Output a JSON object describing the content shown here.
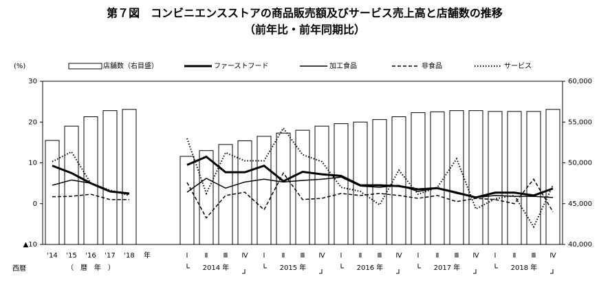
{
  "chart_data": {
    "type": "bar_line",
    "title": "第７図　コンビニエンスストアの商品販売額及びサービス売上高と店舗数の推移",
    "subtitle": "（前年比・前年同期比）",
    "ylabel": "(%)",
    "xlabel": "西暦",
    "annual_group_label": "（　暦　年　）",
    "annual_suffix": "年",
    "year_groups": [
      "2014 年",
      "2015 年",
      "2016 年",
      "2017 年",
      "2018 年"
    ],
    "categories": [
      "'14",
      "'15",
      "'16",
      "'17",
      "'18",
      null,
      null,
      "Ⅰ",
      "Ⅱ",
      "Ⅲ",
      "Ⅳ",
      "Ⅰ",
      "Ⅱ",
      "Ⅲ",
      "Ⅳ",
      "Ⅰ",
      "Ⅱ",
      "Ⅲ",
      "Ⅳ",
      "Ⅰ",
      "Ⅱ",
      "Ⅲ",
      "Ⅳ",
      "Ⅰ",
      "Ⅱ",
      "Ⅲ",
      "Ⅳ"
    ],
    "bars": {
      "name": "店舗数（右目盛）",
      "axis": "y2",
      "color": "#ffffff",
      "values": [
        52750,
        54500,
        55650,
        56400,
        56550,
        null,
        null,
        50800,
        51500,
        52250,
        52700,
        53250,
        53650,
        54000,
        54500,
        54800,
        55000,
        55300,
        55650,
        56150,
        56250,
        56400,
        56400,
        56300,
        56300,
        56300,
        56550
      ]
    },
    "series": [
      {
        "name": "ファーストフード",
        "color": "#000000",
        "width": 3,
        "dash": "none",
        "values": [
          9.3,
          7.5,
          5,
          3,
          2.5,
          null,
          null,
          9.5,
          11.5,
          7.7,
          7.7,
          9.3,
          5.5,
          7.8,
          7.2,
          6.8,
          4.5,
          4.5,
          4.3,
          3.5,
          3.8,
          2.7,
          1.5,
          2.7,
          2.7,
          2,
          3.7
        ]
      },
      {
        "name": "加工食品",
        "color": "#000000",
        "width": 1.5,
        "dash": "none",
        "values": [
          4.5,
          5.8,
          5,
          3,
          2.3,
          null,
          null,
          2.8,
          6.2,
          3.8,
          5.3,
          6,
          5.3,
          5.7,
          6,
          6.5,
          4.3,
          4,
          4.5,
          3,
          3.8,
          2.5,
          1.5,
          2,
          1.8,
          1.8,
          1.5
        ]
      },
      {
        "name": "非食品",
        "color": "#000000",
        "width": 1.5,
        "dash": "5 3",
        "values": [
          1.7,
          1.8,
          2.3,
          1,
          1,
          null,
          null,
          5.2,
          -3.5,
          2,
          2.8,
          -1.5,
          7.5,
          1,
          1.3,
          2.5,
          2,
          2.5,
          2,
          1.3,
          2,
          0.5,
          1.3,
          1,
          0,
          6,
          -2
        ]
      },
      {
        "name": "サービス",
        "color": "#000000",
        "width": 2,
        "dash": "1.5 2.5",
        "values": [
          10.3,
          12.7,
          5,
          3.3,
          2,
          null,
          null,
          16,
          2.5,
          12.5,
          10.5,
          10.5,
          18.5,
          12,
          10.3,
          4,
          3,
          -0.3,
          8.2,
          2.3,
          4,
          11,
          -1.3,
          1.2,
          2,
          -5.7,
          4.5
        ]
      }
    ],
    "ylim": [
      -10,
      30
    ],
    "yticks": [
      {
        "value": -10,
        "label": "▲10"
      },
      0,
      10,
      20,
      30
    ],
    "y2lim": [
      40000,
      60000
    ],
    "y2ticks": [
      {
        "value": 40000,
        "label": "40,000"
      },
      {
        "value": 45000,
        "label": "45,000"
      },
      {
        "value": 50000,
        "label": "50,000"
      },
      {
        "value": 55000,
        "label": "55,000"
      },
      {
        "value": 60000,
        "label": "60,000"
      }
    ],
    "grid": false
  }
}
